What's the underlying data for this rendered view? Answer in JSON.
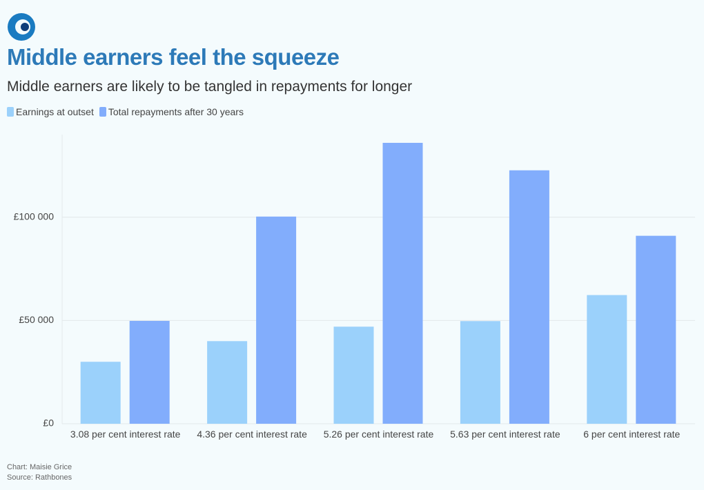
{
  "chart_data": {
    "type": "bar",
    "title": "Middle earners feel the squeeze",
    "subtitle": "Middle earners are likely to be tangled in repayments for longer",
    "categories": [
      "3.08 per cent interest rate",
      "4.36 per cent interest rate",
      "5.26 per cent interest rate",
      "5.63 per cent interest rate",
      "6 per cent interest rate"
    ],
    "series": [
      {
        "name": "Earnings at outset",
        "color": "#9bd1fb",
        "values": [
          30000,
          40000,
          47000,
          49700,
          62300
        ]
      },
      {
        "name": "Total repayments after 30 years",
        "color": "#82adfc",
        "values": [
          49800,
          100300,
          136000,
          122700,
          91000
        ]
      }
    ],
    "ylim": [
      0,
      140000
    ],
    "yticks": [
      {
        "value": 0,
        "label": "£0"
      },
      {
        "value": 50000,
        "label": "£50 000"
      },
      {
        "value": 100000,
        "label": "£100 000"
      }
    ],
    "grid": true,
    "credit": "Chart: Maisie Grice",
    "source": "Source: Rathbones"
  }
}
